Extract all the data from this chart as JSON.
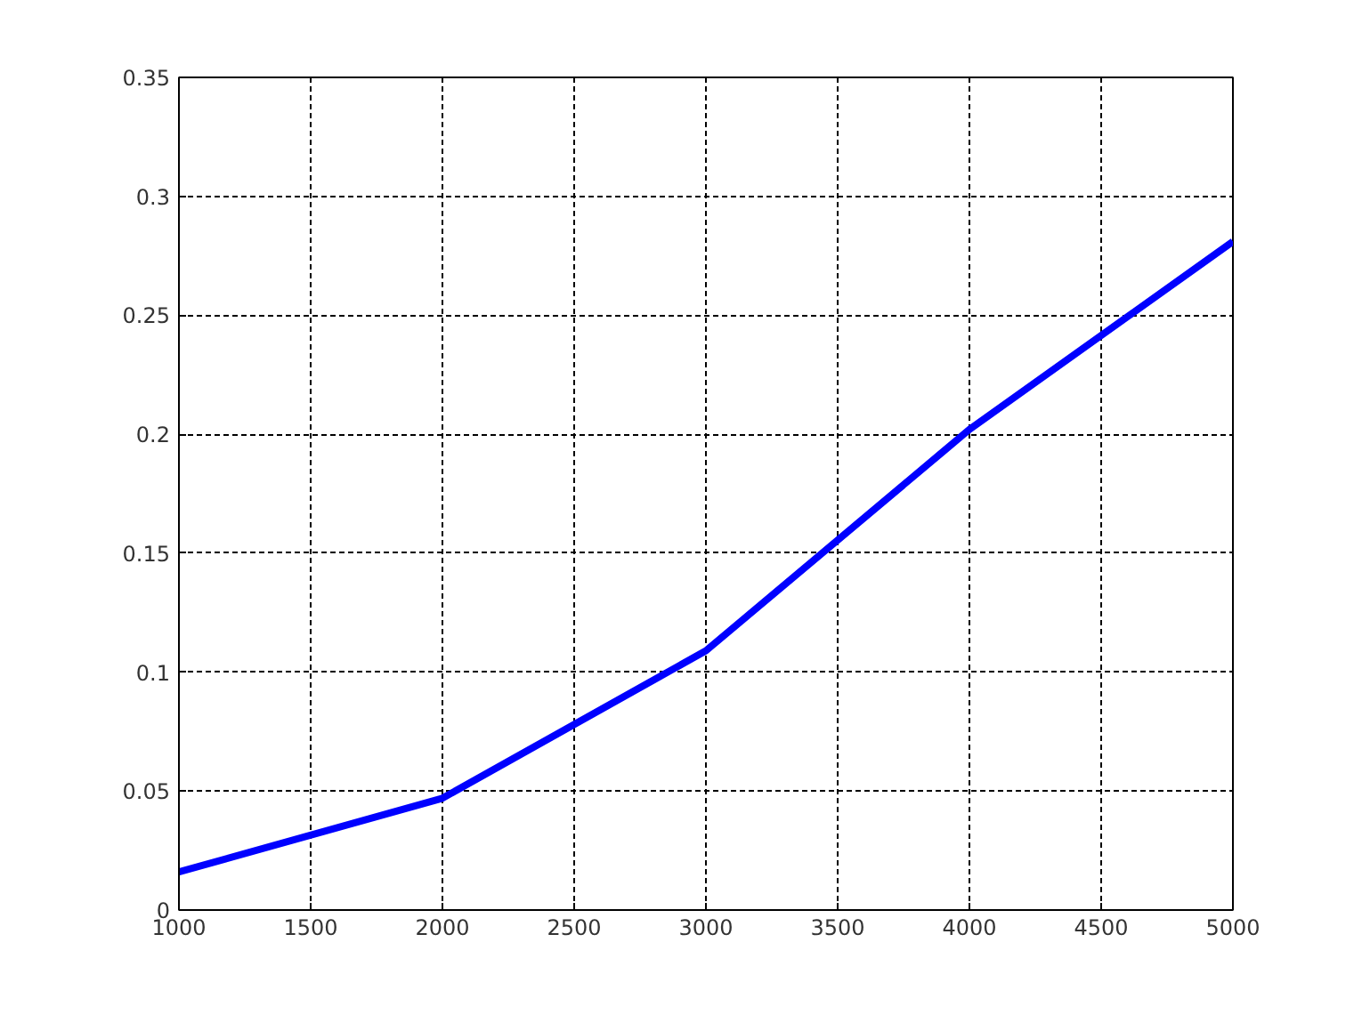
{
  "chart_data": {
    "type": "line",
    "x": [
      1000,
      2000,
      3000,
      4000,
      5000
    ],
    "series": [
      {
        "color": "#0000ff",
        "values": [
          0.016,
          0.047,
          0.109,
          0.202,
          0.281
        ]
      }
    ],
    "xlim": [
      1000,
      5000
    ],
    "xticks": [
      1000,
      1500,
      2000,
      2500,
      3000,
      3500,
      4000,
      4500,
      5000
    ],
    "ylim": [
      0,
      0.35
    ],
    "yticks": [
      0,
      0.05,
      0.1,
      0.15,
      0.2,
      0.25,
      0.3,
      0.35
    ],
    "grid": true,
    "line_style": "solid",
    "marker": "none"
  }
}
